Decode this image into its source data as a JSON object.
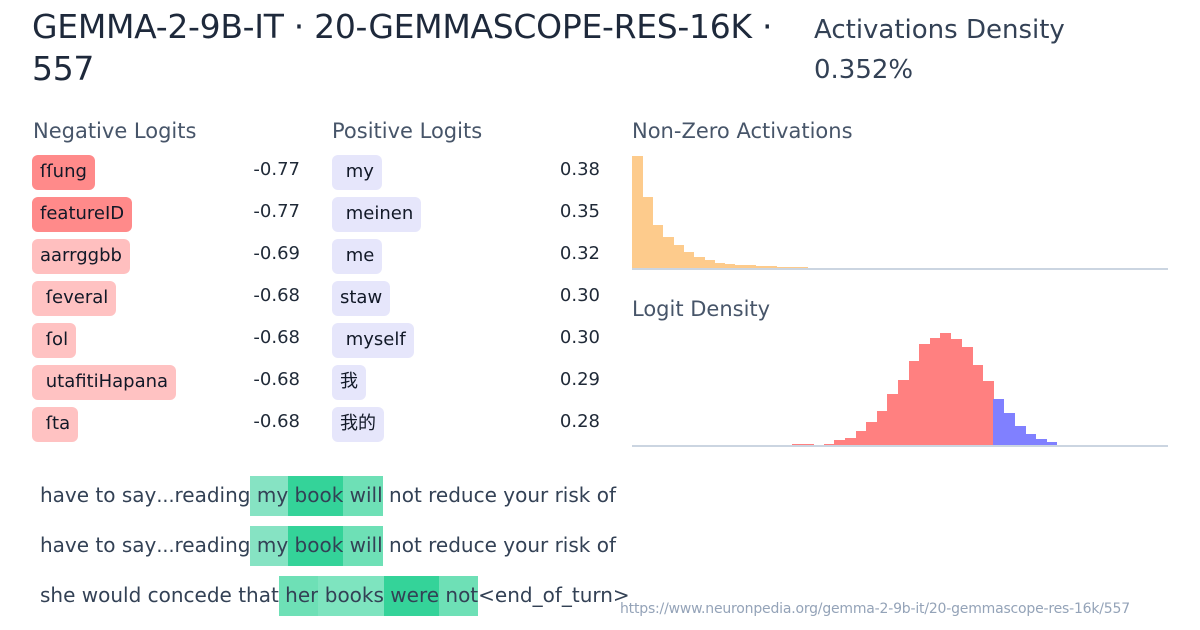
{
  "header": {
    "title": "GEMMA-2-9B-IT · 20-GEMMASCOPE-RES-16K · 557",
    "density_label": "Activations Density",
    "density_value": "0.352%"
  },
  "negative_logits": {
    "label": "Negative Logits",
    "items": [
      {
        "token": "ſſung",
        "value": "-0.77",
        "color": "#ff8a8a"
      },
      {
        "token": "featureID",
        "value": "-0.77",
        "color": "#ff8a8a"
      },
      {
        "token": "aarrggbb",
        "value": "-0.69",
        "color": "#ffbfbf"
      },
      {
        "token": " ſeveral",
        "value": "-0.68",
        "color": "#ffc2c2"
      },
      {
        "token": " ſol",
        "value": "-0.68",
        "color": "#ffc2c2"
      },
      {
        "token": " utafitiHapana",
        "value": "-0.68",
        "color": "#ffc2c2"
      },
      {
        "token": " ſta",
        "value": "-0.68",
        "color": "#ffc2c2"
      }
    ]
  },
  "positive_logits": {
    "label": "Positive Logits",
    "items": [
      {
        "token": " my",
        "value": "0.38"
      },
      {
        "token": " meinen",
        "value": "0.35"
      },
      {
        "token": " me",
        "value": "0.32"
      },
      {
        "token": "staw",
        "value": "0.30"
      },
      {
        "token": " myself",
        "value": "0.30"
      },
      {
        "token": "我",
        "value": "0.29"
      },
      {
        "token": "我的",
        "value": "0.28"
      }
    ]
  },
  "chart_data": [
    {
      "type": "bar",
      "title": "Non-Zero Activations",
      "xlabel": "",
      "ylabel": "",
      "color": "#fdcb8c",
      "grid": false,
      "values": [
        112,
        71,
        43,
        31,
        23,
        16,
        11,
        8,
        5,
        4,
        3,
        3,
        2,
        2,
        1,
        1,
        1
      ]
    },
    {
      "type": "bar",
      "title": "Logit Density",
      "xlabel": "",
      "ylabel": "",
      "grid": false,
      "series": [
        {
          "name": "negative",
          "color": "#ff8080",
          "values": [
            1,
            1,
            0,
            1,
            5,
            7,
            14,
            23,
            34,
            51,
            65,
            84,
            101,
            107,
            112,
            106,
            98,
            80,
            64
          ]
        },
        {
          "name": "positive",
          "color": "#8080ff",
          "values": [
            46,
            32,
            19,
            11,
            6,
            3
          ]
        }
      ]
    }
  ],
  "examples": [
    {
      "tokens": [
        {
          "t": "have to say",
          "bg": ""
        },
        {
          "t": "...",
          "bg": "",
          "small": true
        },
        {
          "t": "reading",
          "bg": ""
        },
        {
          "t": " my",
          "bg": "#86e3c3"
        },
        {
          "t": " book",
          "bg": "#34d399"
        },
        {
          "t": " will",
          "bg": "#6ee0b6"
        },
        {
          "t": " not reduce your risk of",
          "bg": ""
        }
      ]
    },
    {
      "tokens": [
        {
          "t": "have to say",
          "bg": ""
        },
        {
          "t": "...",
          "bg": "",
          "small": true
        },
        {
          "t": "reading",
          "bg": ""
        },
        {
          "t": " my",
          "bg": "#86e3c3"
        },
        {
          "t": " book",
          "bg": "#34d399"
        },
        {
          "t": " will",
          "bg": "#6ee0b6"
        },
        {
          "t": " not reduce your risk of",
          "bg": ""
        }
      ]
    },
    {
      "tokens": [
        {
          "t": "she would concede that",
          "bg": ""
        },
        {
          "t": " her",
          "bg": "#6ee0b6"
        },
        {
          "t": " books",
          "bg": "#7ee4bf"
        },
        {
          "t": " were",
          "bg": "#34d399"
        },
        {
          "t": " not",
          "bg": "#6ee0b6"
        },
        {
          "t": "<end_of_turn>",
          "bg": ""
        }
      ]
    }
  ],
  "footer": {
    "url": "https://www.neuronpedia.org/gemma-2-9b-it/20-gemmascope-res-16k/557"
  }
}
